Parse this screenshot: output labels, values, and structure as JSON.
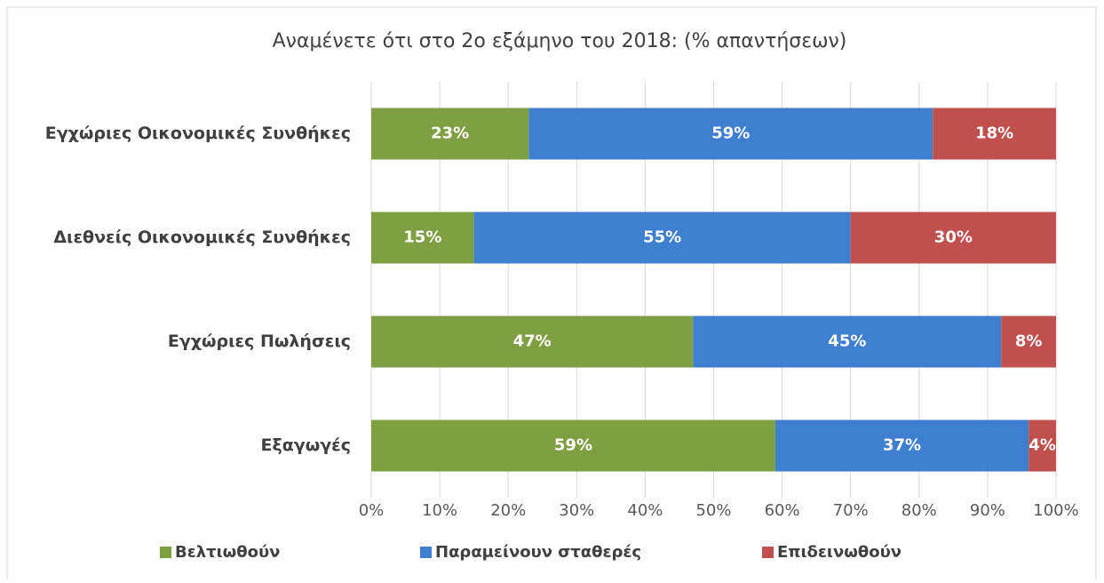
{
  "chart_data": {
    "type": "stacked_barh",
    "title": "Αναμένετε ότι στο 2ο εξάμηνο του 2018: (% απαντήσεων)",
    "categories": [
      "Εγχώριες Οικονομικές Συνθήκες",
      "Διεθνείς Οικονομικές Συνθήκες",
      "Εγχώριες Πωλήσεις",
      "Εξαγωγές"
    ],
    "series": [
      {
        "name": "Βελτιωθούν",
        "color": "#7f9f43",
        "values": [
          23,
          15,
          47,
          59
        ],
        "value_labels": [
          "23%",
          "15%",
          "47%",
          "59%"
        ]
      },
      {
        "name": "Παραμείνουν σταθερές",
        "color": "#3f7fcf",
        "values": [
          59,
          55,
          45,
          37
        ],
        "value_labels": [
          "59%",
          "55%",
          "45%",
          "37%"
        ]
      },
      {
        "name": "Επιδεινωθούν",
        "color": "#c0504d",
        "values": [
          18,
          30,
          8,
          4
        ],
        "value_labels": [
          "18%",
          "30%",
          "8%",
          "4%"
        ]
      }
    ],
    "xlim": [
      0,
      100
    ],
    "xticks": [
      {
        "value": 0,
        "label": "0%"
      },
      {
        "value": 10,
        "label": "10%"
      },
      {
        "value": 20,
        "label": "20%"
      },
      {
        "value": 30,
        "label": "30%"
      },
      {
        "value": 40,
        "label": "40%"
      },
      {
        "value": 50,
        "label": "50%"
      },
      {
        "value": 60,
        "label": "60%"
      },
      {
        "value": 70,
        "label": "70%"
      },
      {
        "value": 80,
        "label": "80%"
      },
      {
        "value": 90,
        "label": "90%"
      },
      {
        "value": 100,
        "label": "100%"
      }
    ],
    "grid": true,
    "legend": "bottom"
  }
}
